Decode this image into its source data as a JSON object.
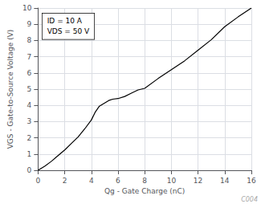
{
  "chart_data": {
    "type": "line",
    "xlabel": "Qg - Gate Charge (nC)",
    "ylabel": "VGS - Gate-to-Source Voltage (V)",
    "annotations": [
      "ID = 10 A",
      "VDS = 50 V"
    ],
    "watermark": "C004",
    "x": [
      0,
      0.5,
      1,
      1.5,
      2,
      2.5,
      3,
      3.5,
      4,
      4.3,
      4.6,
      5.0,
      5.3,
      5.6,
      6.0,
      6.5,
      7.0,
      7.5,
      8.0,
      9.0,
      10.0,
      11.0,
      12.0,
      13.0,
      14.0,
      15.0,
      16.0
    ],
    "values": [
      0,
      0.25,
      0.55,
      0.9,
      1.25,
      1.65,
      2.05,
      2.55,
      3.1,
      3.6,
      3.95,
      4.15,
      4.3,
      4.38,
      4.42,
      4.55,
      4.75,
      4.95,
      5.05,
      5.65,
      6.2,
      6.75,
      7.4,
      8.05,
      8.85,
      9.45,
      10.0
    ],
    "color": "#000000",
    "xlim": [
      0,
      16
    ],
    "ylim": [
      0,
      10
    ],
    "xticks": [
      0,
      2,
      4,
      6,
      8,
      10,
      12,
      14,
      16
    ],
    "yticks": [
      0,
      1,
      2,
      3,
      4,
      5,
      6,
      7,
      8,
      9,
      10
    ],
    "grid": true
  }
}
